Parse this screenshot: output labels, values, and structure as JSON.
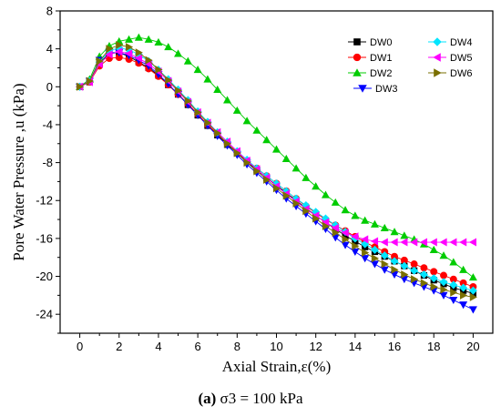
{
  "caption": {
    "label": "(a)",
    "text": "σ3 = 100 kPa"
  },
  "chart_data": {
    "type": "line",
    "xlabel": "Axial Strain,ε(%)",
    "ylabel": "Pore Water Pressure ,u (kPa)",
    "xlim": [
      -1,
      21
    ],
    "ylim": [
      -26,
      8
    ],
    "xticks": [
      0,
      2,
      4,
      6,
      8,
      10,
      12,
      14,
      16,
      18,
      20
    ],
    "yticks": [
      -24,
      -20,
      -16,
      -12,
      -8,
      -4,
      0,
      4,
      8
    ],
    "grid": false,
    "legend_position": "top-right",
    "x": [
      0,
      0.5,
      1,
      1.5,
      2,
      2.5,
      3,
      3.5,
      4,
      4.5,
      5,
      5.5,
      6,
      6.5,
      7,
      7.5,
      8,
      8.5,
      9,
      9.5,
      10,
      10.5,
      11,
      11.5,
      12,
      12.5,
      13,
      13.5,
      14,
      14.5,
      15,
      15.5,
      16,
      16.5,
      17,
      17.5,
      18,
      18.5,
      19,
      19.5,
      20
    ],
    "series": [
      {
        "name": "DW0",
        "color": "#000000",
        "marker": "square",
        "values": [
          0,
          0.5,
          2.5,
          3.5,
          3.6,
          3.2,
          2.6,
          2.0,
          1.2,
          0.2,
          -0.8,
          -1.9,
          -3.0,
          -4.1,
          -5.1,
          -6.1,
          -7.0,
          -7.9,
          -8.8,
          -9.6,
          -10.4,
          -11.2,
          -12.0,
          -12.8,
          -13.6,
          -14.3,
          -15.0,
          -15.7,
          -16.3,
          -16.9,
          -17.4,
          -17.9,
          -18.4,
          -18.9,
          -19.4,
          -19.9,
          -20.4,
          -20.8,
          -21.2,
          -21.5,
          -21.8
        ]
      },
      {
        "name": "DW1",
        "color": "#ff0000",
        "marker": "circle",
        "values": [
          0,
          0.5,
          2.2,
          3.0,
          3.1,
          2.9,
          2.5,
          1.9,
          1.1,
          0.2,
          -0.8,
          -1.8,
          -2.9,
          -4.0,
          -5.0,
          -6.0,
          -6.9,
          -7.8,
          -8.6,
          -9.4,
          -10.2,
          -11.0,
          -11.8,
          -12.6,
          -13.3,
          -14.0,
          -14.6,
          -15.2,
          -15.8,
          -16.4,
          -16.9,
          -17.4,
          -17.9,
          -18.3,
          -18.7,
          -19.1,
          -19.5,
          -19.9,
          -20.3,
          -20.7,
          -21.1
        ]
      },
      {
        "name": "DW2",
        "color": "#00cc00",
        "marker": "triangle-up",
        "values": [
          0,
          0.8,
          3.2,
          4.3,
          4.8,
          5.0,
          5.2,
          5.0,
          4.7,
          4.2,
          3.5,
          2.7,
          1.8,
          0.8,
          -0.3,
          -1.4,
          -2.5,
          -3.6,
          -4.6,
          -5.6,
          -6.6,
          -7.6,
          -8.6,
          -9.6,
          -10.5,
          -11.4,
          -12.2,
          -13.0,
          -13.6,
          -14.1,
          -14.5,
          -14.9,
          -15.3,
          -15.7,
          -16.1,
          -16.6,
          -17.2,
          -17.8,
          -18.5,
          -19.3,
          -20.1
        ]
      },
      {
        "name": "DW3",
        "color": "#0000ff",
        "marker": "triangle-down",
        "values": [
          0,
          0.6,
          2.8,
          3.6,
          3.6,
          3.3,
          2.8,
          2.2,
          1.3,
          0.3,
          -0.8,
          -1.9,
          -3.0,
          -4.1,
          -5.2,
          -6.2,
          -7.2,
          -8.2,
          -9.1,
          -10.0,
          -10.9,
          -11.8,
          -12.6,
          -13.4,
          -14.2,
          -15.0,
          -15.9,
          -16.7,
          -17.4,
          -18.1,
          -18.7,
          -19.3,
          -19.8,
          -20.3,
          -20.7,
          -21.1,
          -21.5,
          -22.0,
          -22.5,
          -23.0,
          -23.5
        ]
      },
      {
        "name": "DW4",
        "color": "#00e5ff",
        "marker": "diamond",
        "values": [
          0,
          0.6,
          2.6,
          3.8,
          4.1,
          3.9,
          3.4,
          2.7,
          1.8,
          0.8,
          -0.3,
          -1.4,
          -2.6,
          -3.7,
          -4.8,
          -5.8,
          -6.8,
          -7.7,
          -8.6,
          -9.4,
          -10.2,
          -11.0,
          -11.8,
          -12.5,
          -13.2,
          -13.9,
          -14.6,
          -15.3,
          -16.0,
          -16.6,
          -17.2,
          -17.8,
          -18.4,
          -18.9,
          -19.4,
          -19.8,
          -20.2,
          -20.6,
          -20.9,
          -21.2,
          -21.5
        ]
      },
      {
        "name": "DW5",
        "color": "#ff00ff",
        "marker": "triangle-left",
        "values": [
          0,
          0.5,
          2.4,
          3.4,
          3.7,
          3.5,
          3.0,
          2.4,
          1.6,
          0.6,
          -0.5,
          -1.6,
          -2.7,
          -3.8,
          -4.8,
          -5.8,
          -6.8,
          -7.8,
          -8.7,
          -9.6,
          -10.5,
          -11.3,
          -12.1,
          -12.9,
          -13.6,
          -14.3,
          -14.9,
          -15.4,
          -15.8,
          -16.1,
          -16.3,
          -16.4,
          -16.4,
          -16.4,
          -16.4,
          -16.4,
          -16.4,
          -16.4,
          -16.4,
          -16.4,
          -16.4
        ]
      },
      {
        "name": "DW6",
        "color": "#7a6f00",
        "marker": "triangle-right",
        "values": [
          0,
          0.6,
          2.7,
          4.0,
          4.4,
          4.2,
          3.6,
          2.8,
          1.8,
          0.7,
          -0.4,
          -1.5,
          -2.7,
          -3.8,
          -4.9,
          -6.0,
          -7.0,
          -8.0,
          -8.9,
          -9.8,
          -10.7,
          -11.5,
          -12.3,
          -13.1,
          -13.9,
          -14.7,
          -15.4,
          -16.1,
          -16.8,
          -17.5,
          -18.1,
          -18.7,
          -19.3,
          -19.8,
          -20.3,
          -20.7,
          -21.1,
          -21.4,
          -21.7,
          -22.0,
          -22.2
        ]
      }
    ]
  }
}
